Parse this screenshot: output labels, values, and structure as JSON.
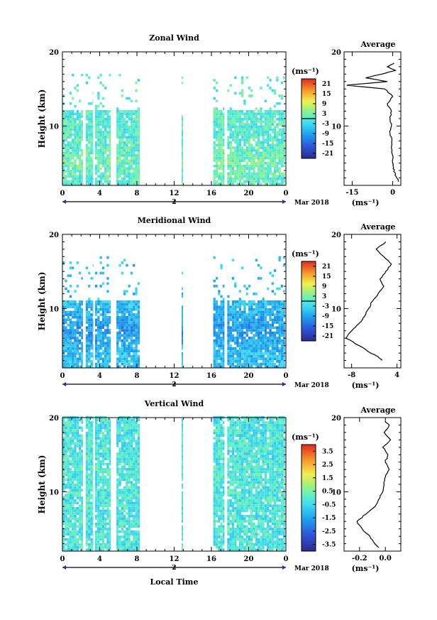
{
  "figure": {
    "xlabel": "Local Time",
    "date_label": "Mar 2018",
    "day_label": "2",
    "unit_label": "(ms⁻¹)",
    "avg_unit_label": "(ms⁻¹)",
    "ylabel": "Height (km)"
  },
  "chart_data": [
    {
      "type": "heatmap",
      "title": "Zonal Wind",
      "ylabel": "Height (km)",
      "x_ticks": [
        "0",
        "4",
        "8",
        "12",
        "16",
        "20",
        "0"
      ],
      "xlim": [
        0,
        24
      ],
      "y_ticks": [
        "10",
        "20"
      ],
      "ylim": [
        2,
        20
      ],
      "colorbar": {
        "ticks": [
          "21",
          "15",
          "9",
          "3",
          "-3",
          "-9",
          "-15",
          "-21"
        ],
        "range": [
          -24,
          24
        ],
        "contour_at": 0
      },
      "data_time_blocks": [
        [
          0,
          2.2
        ],
        [
          2.5,
          3.3
        ],
        [
          3.5,
          5.2
        ],
        [
          5.8,
          8.3
        ],
        [
          12.8,
          12.95
        ],
        [
          16.2,
          17.4
        ],
        [
          17.7,
          23.9
        ]
      ],
      "data_top_km": 12,
      "field": {
        "base": 0,
        "jet": 2,
        "jet_center_km": 5,
        "sporadic_top_km": 17
      },
      "average": {
        "title": "Average",
        "x_ticks": [
          "-15",
          "0"
        ],
        "xlim": [
          -18,
          3
        ],
        "y_ticks": [
          "10",
          "20"
        ],
        "ylim": [
          2,
          20
        ],
        "profile_km": [
          2.5,
          3,
          3.5,
          4,
          4.5,
          5,
          6,
          7,
          8,
          9,
          10,
          11,
          12,
          13,
          14,
          15,
          15.5,
          16,
          16.5,
          17,
          17.5,
          18,
          18.5
        ],
        "profile_ms": [
          2.2,
          1.5,
          1.0,
          0.5,
          0.2,
          0.0,
          0.0,
          -0.5,
          -0.3,
          -1.0,
          -0.5,
          -1.0,
          -0.5,
          -2.0,
          0.0,
          -3.0,
          -17.0,
          -2.0,
          -10.0,
          -4.0,
          1.0,
          -2.0,
          0.5
        ]
      }
    },
    {
      "type": "heatmap",
      "title": "Meridional Wind",
      "ylabel": "Height (km)",
      "x_ticks": [
        "0",
        "4",
        "8",
        "12",
        "16",
        "20",
        "0"
      ],
      "xlim": [
        0,
        24
      ],
      "y_ticks": [
        "10",
        "20"
      ],
      "ylim": [
        2,
        20
      ],
      "colorbar": {
        "ticks": [
          "21",
          "15",
          "9",
          "3",
          "-3",
          "-9",
          "-15",
          "-21"
        ],
        "range": [
          -24,
          24
        ],
        "contour_at": 0
      },
      "data_time_blocks": [
        [
          0,
          2.2
        ],
        [
          2.5,
          3.3
        ],
        [
          3.5,
          5.2
        ],
        [
          5.8,
          8.3
        ],
        [
          12.8,
          12.95
        ],
        [
          16.2,
          17.4
        ],
        [
          17.7,
          23.9
        ]
      ],
      "data_top_km": 11,
      "field": {
        "base": -6,
        "jet": -4,
        "jet_center_km": 7,
        "sporadic_top_km": 17
      },
      "average": {
        "title": "Average",
        "x_ticks": [
          "-8",
          "4"
        ],
        "xlim": [
          -10,
          5
        ],
        "y_ticks": [
          "10",
          "20"
        ],
        "ylim": [
          2,
          20
        ],
        "profile_km": [
          3,
          3.5,
          4,
          5,
          6,
          7,
          8,
          9,
          10,
          11,
          12,
          13,
          14,
          15,
          16,
          17,
          18,
          19
        ],
        "profile_ms": [
          0.0,
          -1.0,
          -3.0,
          -6.0,
          -9.5,
          -8.0,
          -6.0,
          -4.5,
          -3.5,
          -2.5,
          -1.0,
          0.5,
          -0.5,
          1.0,
          2.5,
          0.5,
          -1.5,
          1.0
        ]
      }
    },
    {
      "type": "heatmap",
      "title": "Vertical Wind",
      "ylabel": "Height (km)",
      "x_ticks": [
        "0",
        "4",
        "8",
        "12",
        "16",
        "20",
        "0"
      ],
      "xlim": [
        0,
        24
      ],
      "y_ticks": [
        "10",
        "20"
      ],
      "ylim": [
        2,
        20
      ],
      "colorbar": {
        "ticks": [
          "3.5",
          "2.5",
          "1.5",
          "0.5",
          "-0.5",
          "-1.5",
          "-2.5",
          "-3.5"
        ],
        "range": [
          -4,
          4
        ],
        "contour_at": null
      },
      "data_time_blocks": [
        [
          0,
          2.2
        ],
        [
          2.5,
          3.3
        ],
        [
          3.5,
          5.2
        ],
        [
          5.8,
          8.3
        ],
        [
          12.8,
          12.95
        ],
        [
          16.2,
          17.4
        ],
        [
          17.7,
          23.9
        ]
      ],
      "data_top_km": 20,
      "field": {
        "base": -0.2,
        "jet": 0.1,
        "jet_center_km": 12,
        "sporadic_top_km": 20
      },
      "average": {
        "title": "Average",
        "x_ticks": [
          "-0.2",
          "0.0"
        ],
        "xlim": [
          -0.32,
          0.12
        ],
        "y_ticks": [
          "10",
          "20"
        ],
        "ylim": [
          2,
          20
        ],
        "profile_km": [
          2.5,
          3,
          4,
          5,
          6,
          7,
          8,
          9,
          10,
          11,
          12,
          13,
          14,
          15,
          16,
          17,
          18,
          19,
          19.5
        ],
        "profile_ms": [
          -0.05,
          -0.08,
          -0.12,
          -0.18,
          -0.22,
          -0.15,
          -0.08,
          -0.05,
          -0.02,
          -0.01,
          0.0,
          0.03,
          0.0,
          0.02,
          -0.02,
          0.04,
          -0.01,
          0.03,
          0.0
        ]
      }
    }
  ]
}
